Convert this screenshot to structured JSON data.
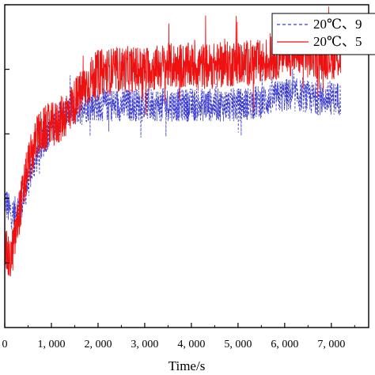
{
  "chart_data": {
    "type": "line",
    "xlabel": "Time/s",
    "ylabel": "",
    "xlim": [
      0,
      7800
    ],
    "ylim": [
      0,
      5
    ],
    "x_ticks": [
      0,
      1000,
      2000,
      3000,
      4000,
      5000,
      6000,
      7000
    ],
    "x_tick_labels": [
      "0",
      "1, 000",
      "2, 000",
      "3, 000",
      "4, 000",
      "5, 000",
      "6, 000",
      "7, 000"
    ],
    "y_ticks": [
      1,
      2,
      3,
      4,
      5
    ],
    "legend_position": "top-right",
    "series": [
      {
        "name": "20℃、9",
        "color": "#3a3ad0",
        "style": "dashed",
        "x": [
          0,
          100,
          200,
          400,
          600,
          800,
          1000,
          1200,
          1400,
          1600,
          1800,
          2000,
          2500,
          3000,
          3500,
          4000,
          4500,
          5000,
          5500,
          6000,
          6300,
          6600,
          7200
        ],
        "y": [
          2.0,
          1.8,
          1.75,
          2.0,
          2.5,
          2.85,
          3.1,
          3.25,
          3.35,
          3.4,
          3.45,
          3.45,
          3.45,
          3.45,
          3.45,
          3.45,
          3.45,
          3.45,
          3.5,
          3.6,
          3.6,
          3.55,
          3.55
        ],
        "noise": 0.26
      },
      {
        "name": "20℃、5",
        "color": "#ee1111",
        "style": "solid",
        "x": [
          0,
          100,
          200,
          300,
          500,
          700,
          900,
          1100,
          1300,
          1500,
          1700,
          1800,
          2000,
          2500,
          3000,
          3500,
          4000,
          4500,
          5000,
          5500,
          6000,
          6300,
          6600,
          7200
        ],
        "y": [
          1.25,
          1.0,
          1.3,
          1.75,
          2.5,
          2.95,
          3.1,
          3.15,
          3.3,
          3.5,
          3.7,
          3.8,
          3.95,
          4.0,
          4.0,
          4.05,
          4.05,
          4.05,
          4.1,
          4.1,
          4.25,
          4.25,
          4.2,
          4.2
        ],
        "noise": 0.36
      }
    ]
  }
}
